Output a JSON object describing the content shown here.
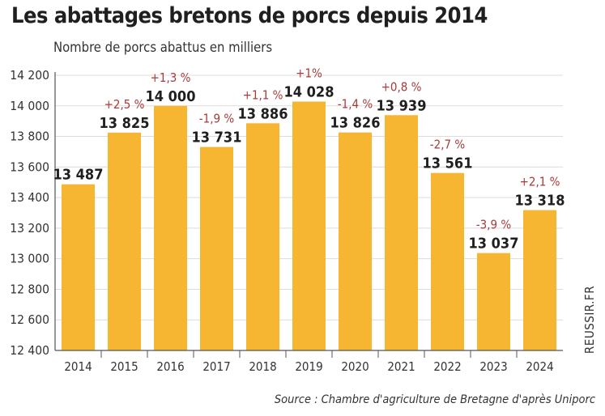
{
  "title": "Les abattages bretons de porcs depuis 2014",
  "subtitle": "Nombre de porcs abattus en milliers",
  "source": "Source : Chambre d'agriculture de Bretagne d'après Uniporc",
  "credit": "REUSSIR.FR",
  "chart_data": {
    "type": "bar",
    "title": "Les abattages bretons de porcs depuis 2014",
    "ylabel": "Nombre de porcs abattus en milliers",
    "xlabel": "",
    "categories": [
      "2014",
      "2015",
      "2016",
      "2017",
      "2018",
      "2019",
      "2020",
      "2021",
      "2022",
      "2023",
      "2024"
    ],
    "values": [
      13487,
      13825,
      14000,
      13731,
      13886,
      14028,
      13826,
      13939,
      13561,
      13037,
      13318
    ],
    "value_labels": [
      "13 487",
      "13 825",
      "14 000",
      "13 731",
      "13 886",
      "14 028",
      "13 826",
      "13 939",
      "13 561",
      "13 037",
      "13 318"
    ],
    "change_labels": [
      "",
      "+2,5 %",
      "+1,3 %",
      "-1,9 %",
      "+1,1 %",
      "+1%",
      "-1,4 %",
      "+0,8 %",
      "-2,7 %",
      "-3,9 %",
      "+2,1 %"
    ],
    "ylim": [
      12400,
      14200
    ],
    "yticks": [
      12400,
      12600,
      12800,
      13000,
      13200,
      13400,
      13600,
      13800,
      14000,
      14200
    ],
    "ytick_labels": [
      "12 400",
      "12 600",
      "12 800",
      "13 000",
      "13 200",
      "13 400",
      "13 600",
      "13 800",
      "14 000",
      "14 200"
    ],
    "grid": true,
    "colors": {
      "bar": "#f6b632",
      "grid": "#dcdcdc",
      "axis": "#555555",
      "change": "#a83a3a"
    }
  }
}
